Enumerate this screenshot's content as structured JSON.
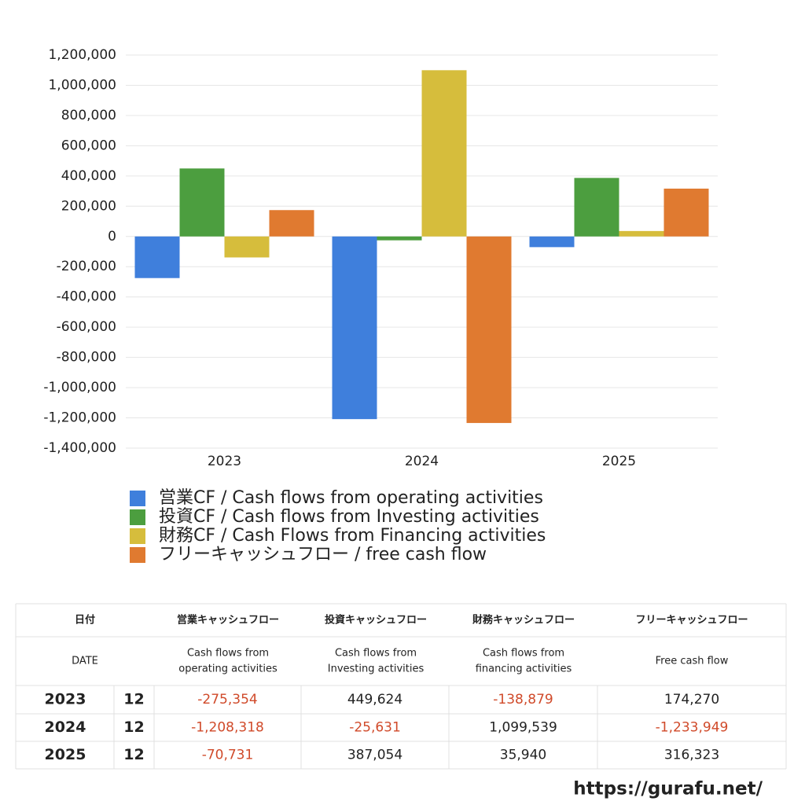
{
  "chart_data": {
    "type": "bar",
    "categories": [
      "2023",
      "2024",
      "2025"
    ],
    "series": [
      {
        "name": "営業CF / Cash flows from operating activities",
        "color": "#3f7fdc",
        "values": [
          -275354,
          -1208318,
          -70731
        ]
      },
      {
        "name": "投資CF / Cash flows from Investing activities",
        "color": "#4c9e3f",
        "values": [
          449624,
          -25631,
          387054
        ]
      },
      {
        "name": "財務CF / Cash Flows from Financing activities",
        "color": "#d6bd3c",
        "values": [
          -138879,
          1099539,
          35940
        ]
      },
      {
        "name": "フリーキャッシュフロー / free cash flow",
        "color": "#e07a30",
        "values": [
          174270,
          -1233949,
          316323
        ]
      }
    ],
    "ylim": [
      -1400000,
      1200000
    ],
    "yticks": [
      {
        "value": -1400000,
        "label": "-1,400,000"
      },
      {
        "value": -1200000,
        "label": "-1,200,000"
      },
      {
        "value": -1000000,
        "label": "-1,000,000"
      },
      {
        "value": -800000,
        "label": "-800,000"
      },
      {
        "value": -600000,
        "label": "-600,000"
      },
      {
        "value": -400000,
        "label": "-400,000"
      },
      {
        "value": -200000,
        "label": "-200,000"
      },
      0,
      {
        "value": 200000,
        "label": "200,000"
      },
      {
        "value": 400000,
        "label": "400,000"
      },
      {
        "value": 600000,
        "label": "600,000"
      },
      {
        "value": 800000,
        "label": "800,000"
      },
      {
        "value": 1000000,
        "label": "1,000,000"
      },
      {
        "value": 1200000,
        "label": "1,200,000"
      }
    ],
    "grid": true,
    "legend": "bottom"
  },
  "table": {
    "header": [
      "日付",
      "営業キャッシュフロー",
      "投資キャッシュフロー",
      "財務キャッシュフロー",
      "フリーキャッシュフロー"
    ],
    "subheader": [
      [
        "DATE"
      ],
      [
        "Cash flows from",
        "operating activities"
      ],
      [
        "Cash flows from",
        "Investing activities"
      ],
      [
        "Cash flows from",
        "financing activities"
      ],
      [
        "Free cash flow"
      ]
    ],
    "rows": [
      [
        "2023",
        "12",
        "-275,354",
        "449,624",
        "-138,879",
        "174,270"
      ],
      [
        "2024",
        "12",
        "-1,208,318",
        "-25,631",
        "1,099,539",
        "-1,233,949"
      ],
      [
        "2025",
        "12",
        "-70,731",
        "387,054",
        "35,940",
        "316,323"
      ]
    ]
  },
  "footer": {
    "url": "https://gurafu.net/"
  }
}
